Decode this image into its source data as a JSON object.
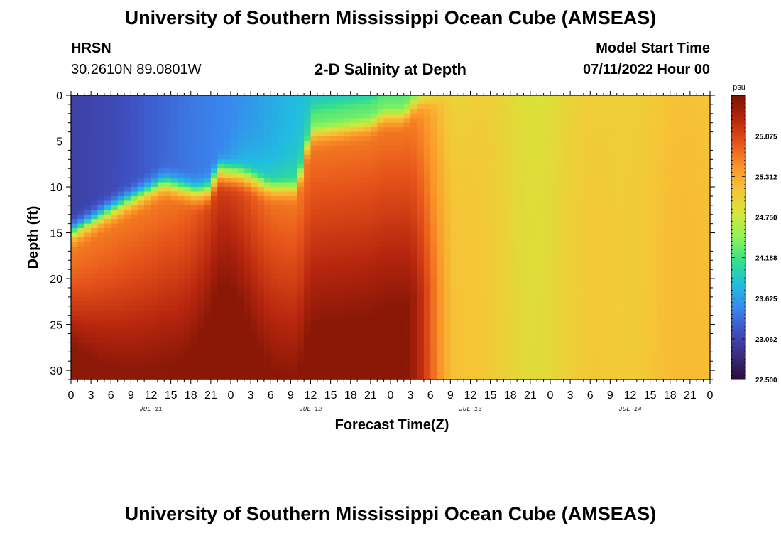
{
  "header": {
    "title": "University of Southern Mississippi Ocean Cube (AMSEAS)",
    "station": "HRSN",
    "coords": "30.2610N  89.0801W",
    "subtitle": "2-D Salinity at Depth",
    "model_start_label": "Model Start Time",
    "model_start_value": "07/11/2022 Hour 00"
  },
  "footer": {
    "title": "University of Southern Mississippi Ocean Cube (AMSEAS)"
  },
  "chart_data": {
    "type": "heatmap",
    "title": "2-D Salinity at Depth",
    "xlabel": "Forecast Time(Z)",
    "ylabel": "Depth (ft)",
    "x_tick_labels": [
      "0",
      "3",
      "6",
      "9",
      "12",
      "15",
      "18",
      "21",
      "0",
      "3",
      "6",
      "9",
      "12",
      "15",
      "18",
      "21",
      "0",
      "3",
      "6",
      "9",
      "12",
      "15",
      "18",
      "21",
      "0",
      "3",
      "6",
      "9",
      "12",
      "15",
      "18",
      "21",
      "0"
    ],
    "x_range_hours": [
      0,
      96
    ],
    "date_labels": [
      {
        "hour": 12,
        "text": "JUL 11"
      },
      {
        "hour": 36,
        "text": "JUL 12"
      },
      {
        "hour": 60,
        "text": "JUL 13"
      },
      {
        "hour": 84,
        "text": "JUL 14"
      }
    ],
    "y_ticks": [
      0,
      5,
      10,
      15,
      20,
      25,
      30
    ],
    "ylim_ft": [
      0,
      31
    ],
    "y_inverted": true,
    "colorbar": {
      "unit": "psu",
      "range": [
        22.5,
        26.44
      ],
      "tick_labels": [
        "25.875",
        "25.312",
        "24.750",
        "24.188",
        "23.625",
        "23.062",
        "22.500"
      ],
      "colors": [
        "#2b0d3a",
        "#3a2d7a",
        "#3f4fc0",
        "#3a86ef",
        "#20bde0",
        "#35e08a",
        "#8ef25a",
        "#d6e63a",
        "#f6c537",
        "#fb9327",
        "#e6531a",
        "#b6260e",
        "#7a1204"
      ]
    },
    "field_description_values_psu": {
      "surface_early": 23.0,
      "bottom_early": 26.3,
      "late_mixed": 25.0
    }
  }
}
